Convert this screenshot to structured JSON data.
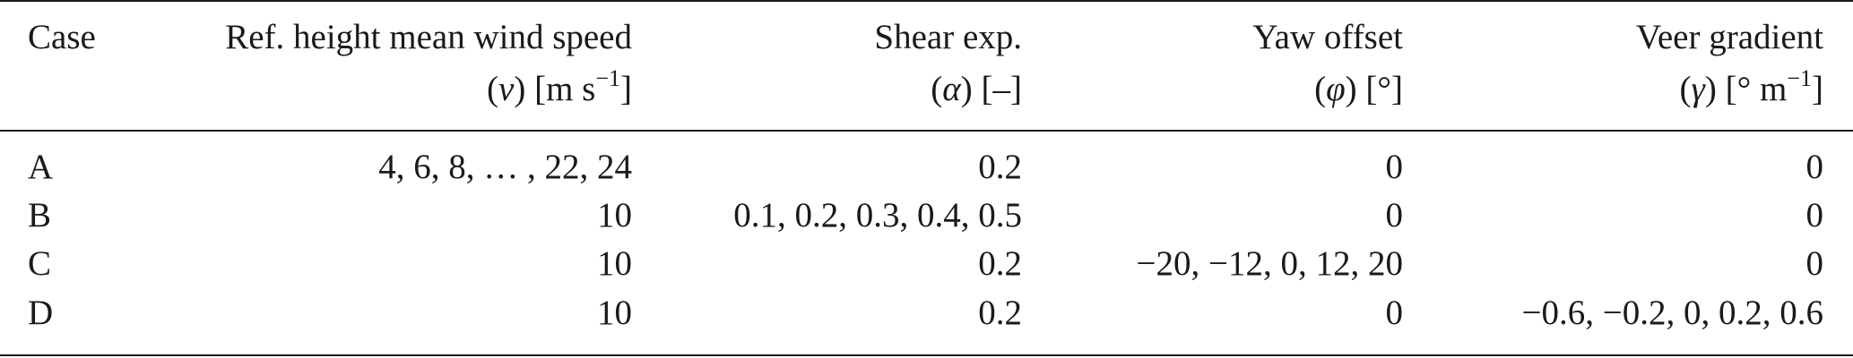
{
  "table": {
    "headers": {
      "case": "Case",
      "speed_line1": "Ref. height mean wind speed",
      "speed_line2_symbol": "v",
      "speed_line2_unit": "[m s",
      "speed_line2_exp": "−1",
      "speed_line2_close": "]",
      "shear_line1": "Shear exp.",
      "shear_line2_symbol": "α",
      "shear_line2_unit": "[–]",
      "yaw_line1": "Yaw offset",
      "yaw_line2_symbol": "φ",
      "yaw_line2_unit": "[°]",
      "veer_line1": "Veer gradient",
      "veer_line2_symbol": "γ",
      "veer_line2_unit": "[° m",
      "veer_line2_exp": "−1",
      "veer_line2_close": "]"
    },
    "rows": [
      {
        "case": "A",
        "speed": "4, 6, 8, … , 22, 24",
        "shear": "0.2",
        "yaw": "0",
        "veer": "0"
      },
      {
        "case": "B",
        "speed": "10",
        "shear": "0.1, 0.2, 0.3, 0.4, 0.5",
        "yaw": "0",
        "veer": "0"
      },
      {
        "case": "C",
        "speed": "10",
        "shear": "0.2",
        "yaw": "−20, −12, 0, 12, 20",
        "veer": "0"
      },
      {
        "case": "D",
        "speed": "10",
        "shear": "0.2",
        "yaw": "0",
        "veer": "−0.6, −0.2, 0, 0.2, 0.6"
      }
    ]
  }
}
